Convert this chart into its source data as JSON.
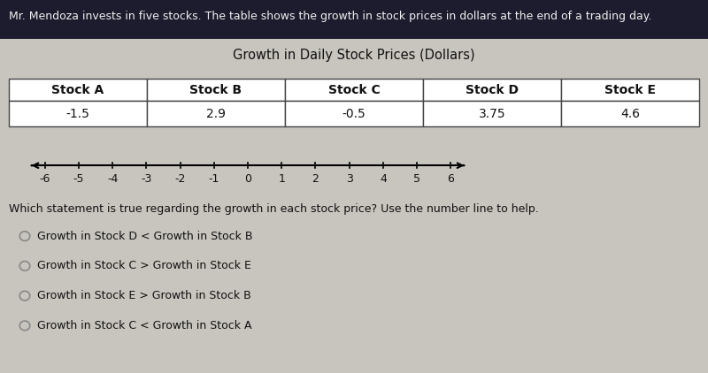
{
  "header_text": "Mr. Mendoza invests in five stocks. The table shows the growth in stock prices in dollars at the end of a trading day.",
  "table_title": "Growth in Daily Stock Prices (Dollars)",
  "columns": [
    "Stock A",
    "Stock B",
    "Stock C",
    "Stock D",
    "Stock E"
  ],
  "values": [
    "-1.5",
    "2.9",
    "-0.5",
    "3.75",
    "4.6"
  ],
  "number_line_ticks": [
    -6,
    -5,
    -4,
    -3,
    -2,
    -1,
    0,
    1,
    2,
    3,
    4,
    5,
    6
  ],
  "question_text": "Which statement is true regarding the growth in each stock price? Use the number line to help.",
  "options": [
    "Growth in Stock D < Growth in Stock B",
    "Growth in Stock C > Growth in Stock E",
    "Growth in Stock E > Growth in Stock B",
    "Growth in Stock C < Growth in Stock A"
  ],
  "header_bg": "#1a1a2e",
  "body_bg": "#c8c5be",
  "table_cell_bg": "#ffffff",
  "border_color": "#444444",
  "text_color": "#111111",
  "header_text_color": "#f0f0f0",
  "font_size_header": 9.0,
  "font_size_table_title": 10.5,
  "font_size_table": 10.0,
  "font_size_question": 9.0,
  "font_size_options": 9.0,
  "radio_color_fill": "#c8c5be",
  "radio_color_edge": "#888888",
  "top_bar_color": "#1c1c2e"
}
